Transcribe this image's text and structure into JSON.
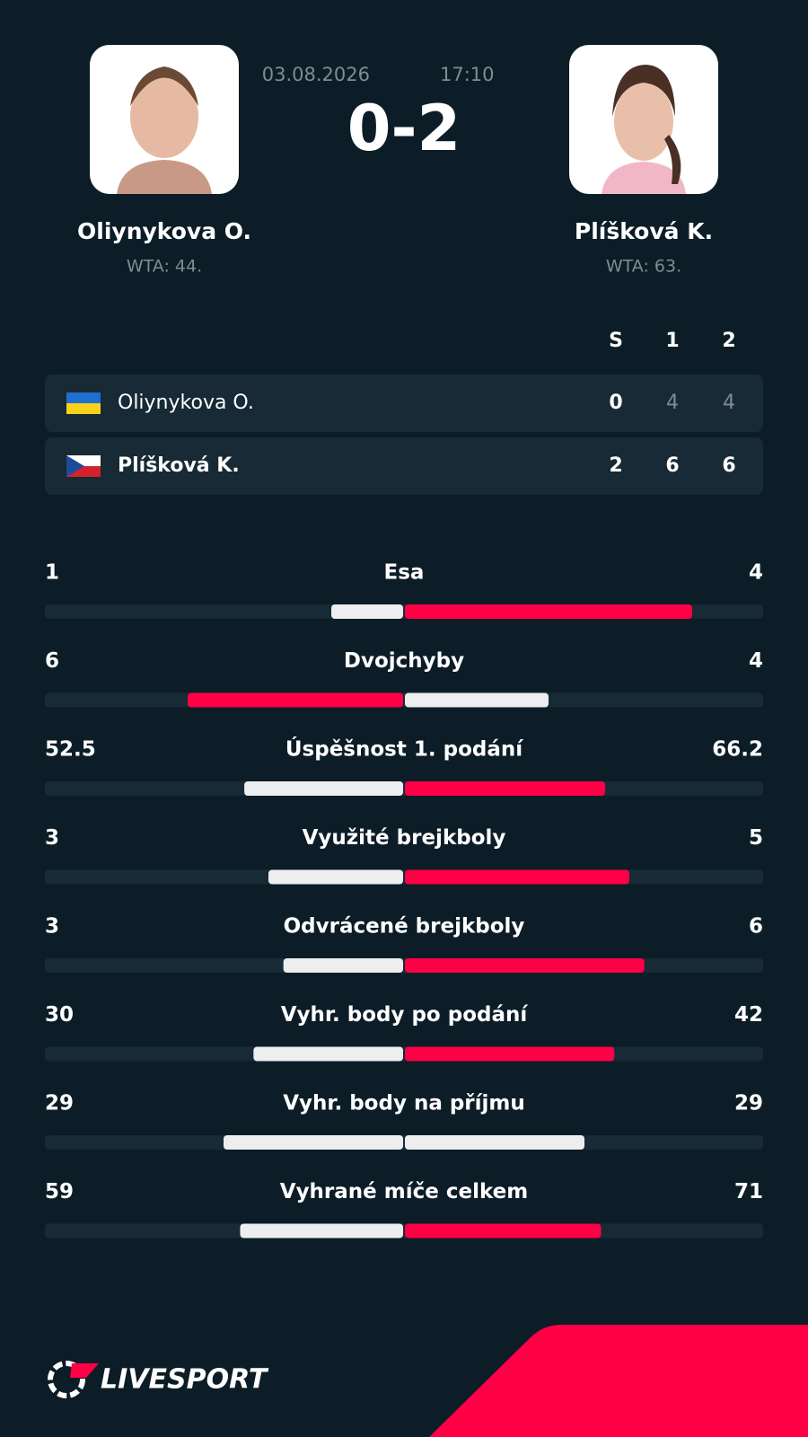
{
  "match": {
    "date": "03.08.2026",
    "time": "17:10",
    "score": "0-2"
  },
  "players": [
    {
      "name": "Oliynykova O.",
      "rank": "WTA: 44."
    },
    {
      "name": "Plíšková K.",
      "rank": "WTA: 63."
    }
  ],
  "scoreboard": {
    "headers": [
      "S",
      "1",
      "2"
    ],
    "rows": [
      {
        "name": "Oliynykova O.",
        "scores": [
          0,
          4,
          4
        ]
      },
      {
        "name": "Plíšková K.",
        "scores": [
          2,
          6,
          6
        ]
      }
    ]
  },
  "stats": [
    {
      "label": "Esa",
      "home": 1,
      "away": 4
    },
    {
      "label": "Dvojchyby",
      "home": 6,
      "away": 4
    },
    {
      "label": "Úspěšnost 1. podání",
      "home": 52.5,
      "away": 66.2
    },
    {
      "label": "Využité brejkboly",
      "home": 3,
      "away": 5
    },
    {
      "label": "Odvrácené brejkboly",
      "home": 3,
      "away": 6
    },
    {
      "label": "Vyhr. body po podání",
      "home": 30,
      "away": 42
    },
    {
      "label": "Vyhr. body na příjmu",
      "home": 29,
      "away": 29
    },
    {
      "label": "Vyhrané míče celkem",
      "home": 59,
      "away": 71
    }
  ],
  "footer": {
    "brand": "LIVESPORT"
  }
}
